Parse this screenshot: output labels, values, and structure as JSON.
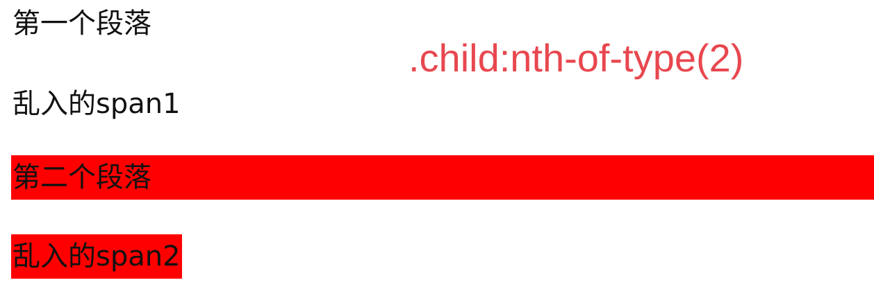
{
  "demo": {
    "selector_label": ".child:nth-of-type(2)",
    "items": [
      {
        "tag": "p",
        "text": "第一个段落",
        "highlighted": false
      },
      {
        "tag": "span",
        "text": "乱入的span1",
        "highlighted": false
      },
      {
        "tag": "p",
        "text": "第二个段落",
        "highlighted": true
      },
      {
        "tag": "span",
        "text": "乱入的span2",
        "highlighted": true
      }
    ]
  },
  "colors": {
    "highlight": "#ff0000",
    "label": "#e8474f",
    "text": "#111111",
    "background": "#ffffff"
  }
}
